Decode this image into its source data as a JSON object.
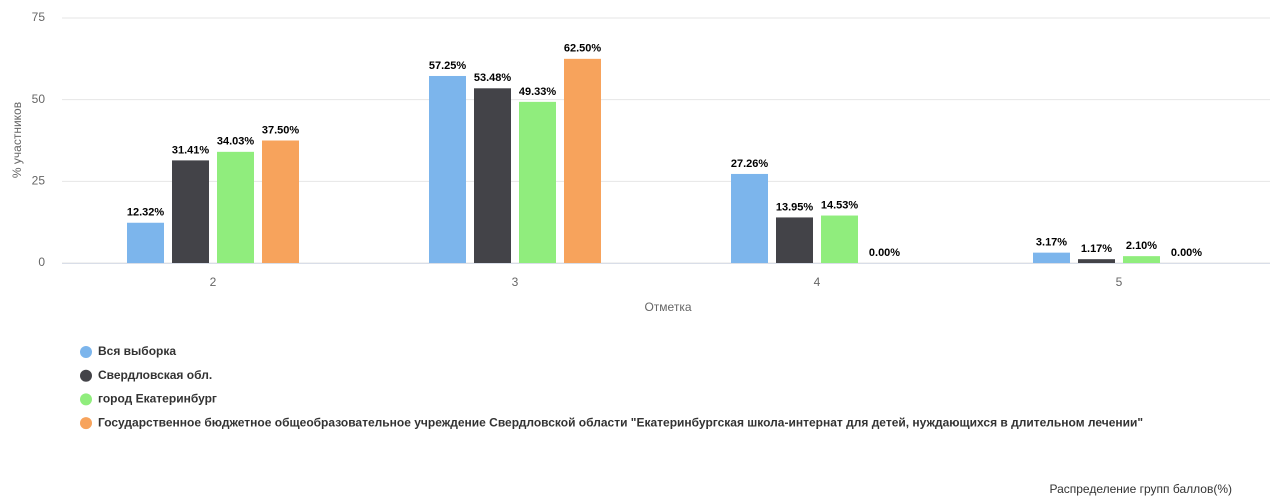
{
  "chart_data": {
    "type": "bar",
    "y_axis_label": "% участников",
    "x_axis_label": "Отметка",
    "caption": "Распределение групп баллов(%)",
    "categories": [
      "2",
      "3",
      "4",
      "5"
    ],
    "series": [
      {
        "name": "Вся выборка",
        "color": "#7cb5ec",
        "values": [
          12.32,
          57.25,
          27.26,
          3.17
        ],
        "value_labels": [
          "12.32%",
          "57.25%",
          "27.26%",
          "3.17%"
        ]
      },
      {
        "name": "Свердловская обл.",
        "color": "#434348",
        "values": [
          31.41,
          53.48,
          13.95,
          1.17
        ],
        "value_labels": [
          "31.41%",
          "53.48%",
          "13.95%",
          "1.17%"
        ]
      },
      {
        "name": "город Екатеринбург",
        "color": "#90ed7d",
        "values": [
          34.03,
          49.33,
          14.53,
          2.1
        ],
        "value_labels": [
          "34.03%",
          "49.33%",
          "14.53%",
          "2.10%"
        ]
      },
      {
        "name": "Государственное бюджетное общеобразовательное учреждение Свердловской области \"Екатеринбургская школа-интернат для детей, нуждающихся в длительном лечении\"",
        "color": "#f7a35c",
        "values": [
          37.5,
          62.5,
          0.0,
          0.0
        ],
        "value_labels": [
          "37.50%",
          "62.50%",
          "0.00%",
          "0.00%"
        ]
      }
    ],
    "ylim": [
      0,
      75
    ],
    "yticks": [
      0,
      25,
      50,
      75
    ],
    "grid": true,
    "legend": "bottom-left"
  }
}
